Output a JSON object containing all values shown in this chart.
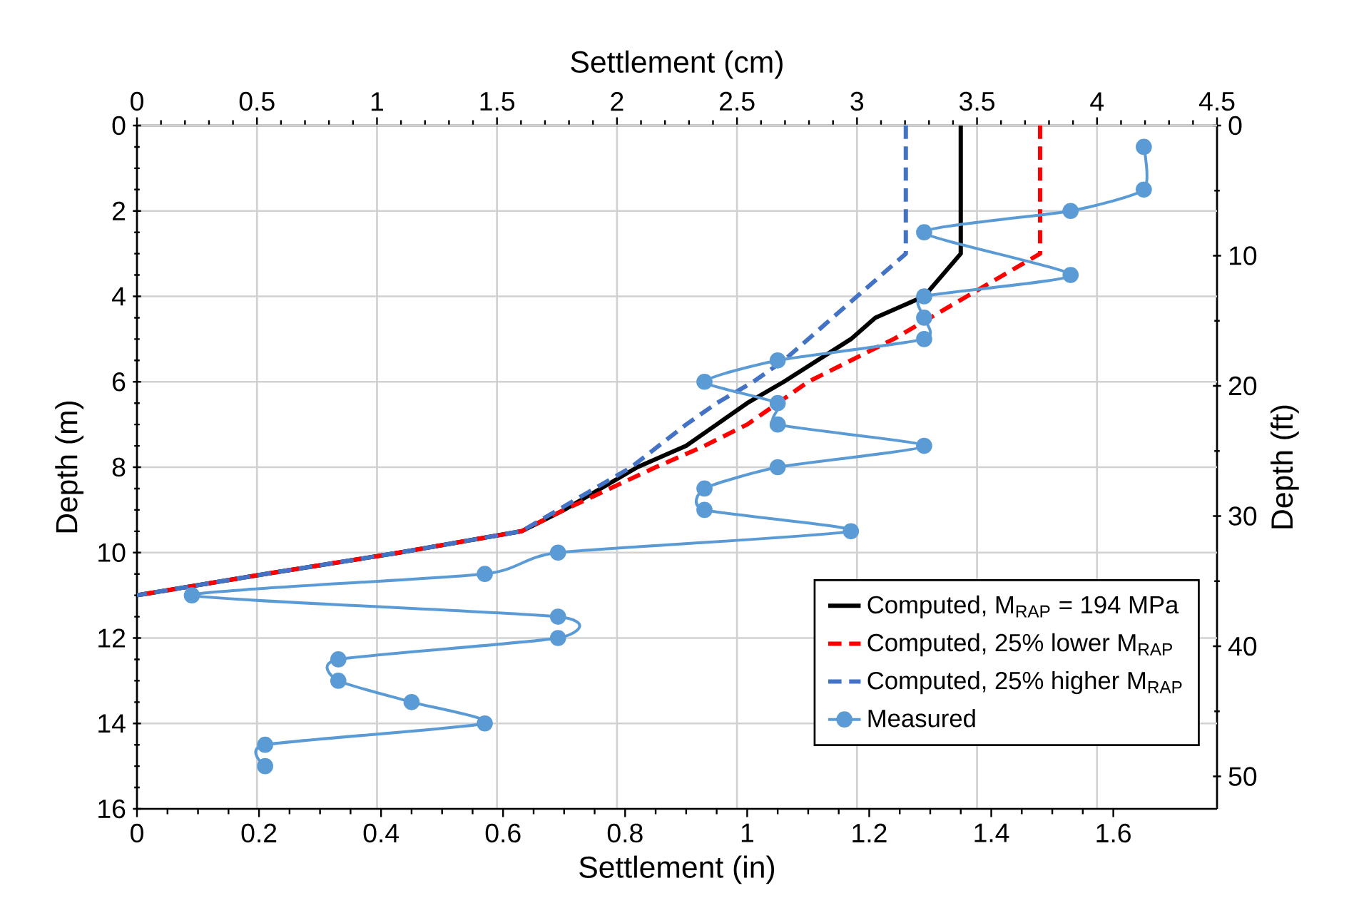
{
  "chart_data": {
    "type": "line",
    "xlabel": "Settlement (in)",
    "ylabel": "Depth (m)",
    "x2label": "Settlement (cm)",
    "y2label": "Depth (ft)",
    "xlim": [
      0,
      1.77
    ],
    "xticks": [
      0,
      0.2,
      0.4,
      0.6,
      0.8,
      1,
      1.2,
      1.4,
      1.6
    ],
    "ylim": [
      16,
      0
    ],
    "yticks": [
      0,
      2,
      4,
      6,
      8,
      10,
      12,
      14,
      16
    ],
    "x2lim": [
      0,
      4.5
    ],
    "x2ticks": [
      0,
      0.5,
      1,
      1.5,
      2,
      2.5,
      3,
      3.5,
      4,
      4.5
    ],
    "y2lim": [
      52.49,
      0
    ],
    "y2ticks": [
      0,
      10,
      20,
      30,
      40,
      50
    ],
    "grid": true,
    "legend": "bottom right",
    "series": [
      {
        "name": "Computed, M$_{RAP}$ = 194 MPa",
        "color": "#000000",
        "line_style": "solid",
        "marker": "none",
        "x": [
          1.35,
          1.35,
          1.29,
          1.21,
          1.17,
          1.06,
          1.0,
          0.95,
          0.9,
          0.82,
          0.7,
          0.63,
          0.43,
          0.21,
          0
        ],
        "values": [
          0,
          3,
          4,
          4.5,
          5,
          6,
          6.5,
          7,
          7.5,
          8,
          9,
          9.5,
          10,
          10.5,
          11
        ]
      },
      {
        "name": "Computed, 25% lower M$_{RAP}$",
        "color": "#ff0000",
        "line_style": "dashed",
        "marker": "none",
        "x": [
          1.48,
          1.48,
          1.36,
          1.3,
          1.24,
          1.1,
          1.0,
          0.93,
          0.85,
          0.7,
          0.63,
          0.43,
          0.21,
          0
        ],
        "values": [
          0,
          3,
          4,
          4.5,
          5,
          6,
          7,
          7.5,
          8,
          9,
          9.5,
          10,
          10.5,
          11
        ]
      },
      {
        "name": "Computed, 25% higher M$_{RAP}$",
        "color": "#4472c4",
        "line_style": "dashed",
        "marker": "none",
        "x": [
          1.26,
          1.26,
          1.18,
          1.14,
          1.1,
          1.06,
          1.01,
          0.95,
          0.9,
          0.81,
          0.69,
          0.63,
          0.43,
          0.21,
          0
        ],
        "values": [
          0,
          3,
          4,
          4.5,
          5,
          5.5,
          6,
          6.5,
          7,
          8,
          9,
          9.5,
          10,
          10.5,
          11
        ]
      },
      {
        "name": "Measured",
        "color": "#5b9bd5",
        "line_style": "solid",
        "marker": "circle",
        "x": [
          1.65,
          1.65,
          1.53,
          1.29,
          1.53,
          1.29,
          1.29,
          1.29,
          1.05,
          0.93,
          1.05,
          1.05,
          1.29,
          1.05,
          0.93,
          0.93,
          1.17,
          0.69,
          0.57,
          0.09,
          0.69,
          0.69,
          0.33,
          0.33,
          0.45,
          0.57,
          0.21,
          0.21
        ],
        "values": [
          0.5,
          1.5,
          2,
          2.5,
          3.5,
          4,
          4.5,
          5,
          5.5,
          6,
          6.5,
          7,
          7.5,
          8,
          8.5,
          9,
          9.5,
          10,
          10.5,
          11,
          11.5,
          12,
          12.5,
          13,
          13.5,
          14,
          14.5,
          15
        ]
      }
    ]
  }
}
